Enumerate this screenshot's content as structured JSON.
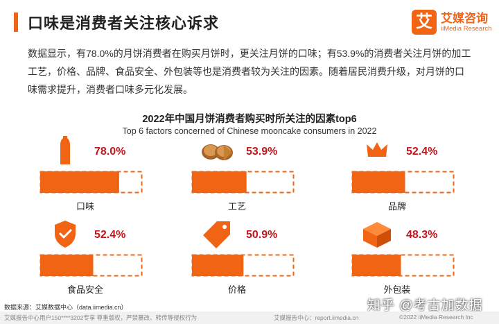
{
  "header": {
    "title": "口味是消费者关注核心诉求",
    "logo_mark": "艾",
    "logo_cn": "艾媒咨询",
    "logo_en": "iiMedia Research"
  },
  "paragraph": "数据显示，有78.0%的月饼消费者在购买月饼时，更关注月饼的口味；有53.9%的消费者关注月饼的加工工艺，价格、品牌、食品安全、外包装等也是消费者较为关注的因素。随着居民消费升级，对月饼的口味需求提升，消费者口味多元化发展。",
  "colors": {
    "accent": "#f06414",
    "value_text": "#c0161c",
    "icon": "#f06414"
  },
  "chart_data": {
    "type": "bar",
    "title": "2022年中国月饼消费者购买时所关注的因素top6",
    "subtitle": "Top 6 factors concerned of Chinese mooncake consumers in 2022",
    "ylim": [
      0,
      100
    ],
    "items": [
      {
        "label": "口味",
        "value": 78.0,
        "value_label": "78.0%",
        "icon": "bottle-icon"
      },
      {
        "label": "工艺",
        "value": 53.9,
        "value_label": "53.9%",
        "icon": "mooncake-icon"
      },
      {
        "label": "品牌",
        "value": 52.4,
        "value_label": "52.4%",
        "icon": "crown-icon"
      },
      {
        "label": "食品安全",
        "value": 52.4,
        "value_label": "52.4%",
        "icon": "shield-check-icon"
      },
      {
        "label": "价格",
        "value": 50.9,
        "value_label": "50.9%",
        "icon": "price-tag-icon"
      },
      {
        "label": "外包装",
        "value": 48.3,
        "value_label": "48.3%",
        "icon": "package-box-icon"
      }
    ]
  },
  "source": "数据来源：艾媒数据中心（data.iimedia.cn）",
  "footer": {
    "left": "艾媒报告中心用户150****3202专享 尊重版权，严禁篡改、转传等侵权行为",
    "center": "艾媒报告中心：report.iimedia.cn",
    "right": "©2022  iiMedia Research  Inc"
  },
  "watermark": "知乎 @考古加数据"
}
